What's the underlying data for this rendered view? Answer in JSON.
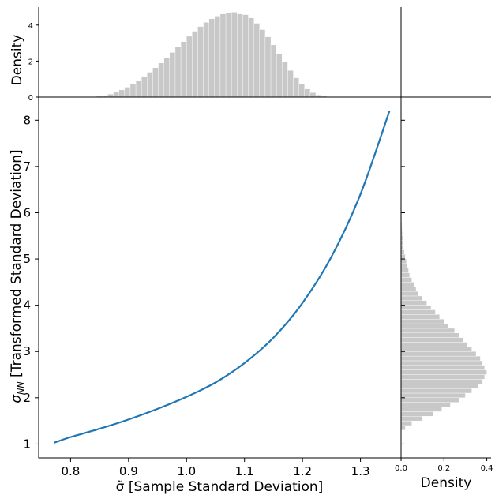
{
  "chart_data": [
    {
      "type": "line",
      "name": "main",
      "xlabel": "σ̃ [Sample Standard Deviation]",
      "ylabel": "σ_NN [Transformed Standard Deviation]",
      "xlim": [
        0.745,
        1.37
      ],
      "ylim": [
        0.7,
        8.5
      ],
      "xticks": [
        0.8,
        0.9,
        1.0,
        1.1,
        1.2,
        1.3
      ],
      "yticks": [
        1,
        2,
        3,
        4,
        5,
        6,
        7,
        8
      ],
      "series": [
        {
          "color": "#1f77b4",
          "x": [
            0.772,
            0.8,
            0.85,
            0.9,
            0.95,
            1.0,
            1.05,
            1.1,
            1.15,
            1.2,
            1.25,
            1.3,
            1.35
          ],
          "y": [
            1.03,
            1.15,
            1.33,
            1.53,
            1.76,
            2.02,
            2.33,
            2.75,
            3.3,
            4.05,
            5.05,
            6.4,
            8.2
          ]
        }
      ]
    },
    {
      "type": "bar",
      "name": "top-marginal",
      "ylabel": "Density",
      "xlim": [
        0.745,
        1.37
      ],
      "ylim": [
        0,
        5
      ],
      "yticks": [
        0,
        2,
        4
      ],
      "bin_start": 0.835,
      "bin_width": 0.0097,
      "values": [
        0.02,
        0.05,
        0.1,
        0.17,
        0.27,
        0.4,
        0.55,
        0.72,
        0.93,
        1.15,
        1.38,
        1.63,
        1.9,
        2.18,
        2.48,
        2.78,
        3.08,
        3.38,
        3.66,
        3.92,
        4.15,
        4.35,
        4.5,
        4.62,
        4.7,
        4.72,
        4.62,
        4.58,
        4.4,
        4.1,
        3.75,
        3.35,
        2.9,
        2.42,
        1.95,
        1.48,
        1.07,
        0.72,
        0.45,
        0.25,
        0.12,
        0.05
      ]
    },
    {
      "type": "bar",
      "name": "right-marginal",
      "xlabel": "Density",
      "xlim": [
        0,
        0.42
      ],
      "xticks": [
        0.0,
        0.2,
        0.4
      ],
      "ylim": [
        0.7,
        8.5
      ],
      "bin_start": 1.3,
      "bin_width": 0.1,
      "values": [
        0.02,
        0.05,
        0.1,
        0.15,
        0.19,
        0.23,
        0.27,
        0.3,
        0.33,
        0.36,
        0.38,
        0.39,
        0.4,
        0.39,
        0.38,
        0.37,
        0.35,
        0.33,
        0.31,
        0.29,
        0.27,
        0.25,
        0.22,
        0.2,
        0.18,
        0.16,
        0.14,
        0.12,
        0.1,
        0.08,
        0.07,
        0.06,
        0.05,
        0.04,
        0.035,
        0.03,
        0.025,
        0.02,
        0.015,
        0.012,
        0.01,
        0.008,
        0.006,
        0.005,
        0.004,
        0.003,
        0.002,
        0.002,
        0.001,
        0.001,
        0.001,
        0.001,
        0.001,
        0.001,
        0.001,
        0.001,
        0.001,
        0.001,
        0.001,
        0.001,
        0.001,
        0.001
      ]
    }
  ]
}
